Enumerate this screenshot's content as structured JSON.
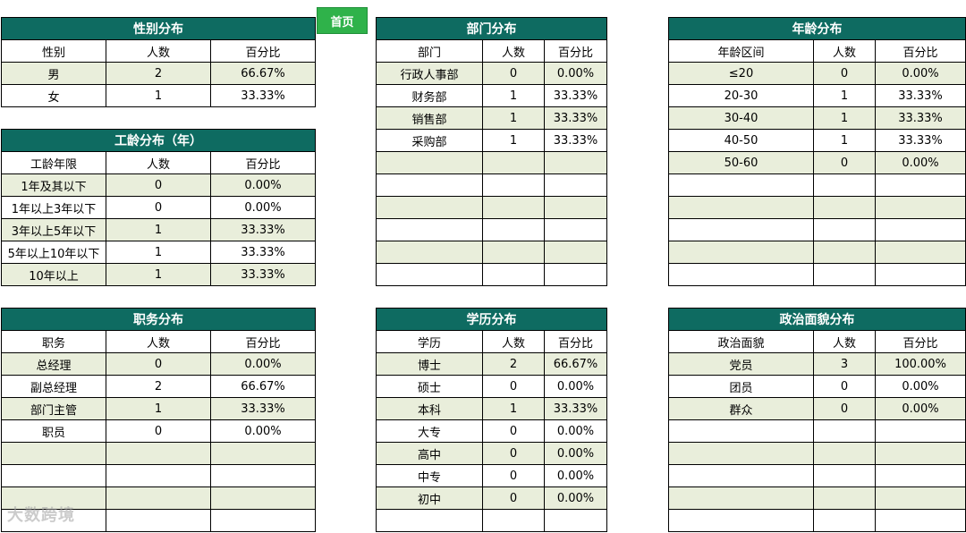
{
  "home_button": "首页",
  "watermark": "大数跨境",
  "tables": {
    "gender": {
      "title": "性别分布",
      "headers": [
        "性别",
        "人数",
        "百分比"
      ],
      "rows": [
        [
          "男",
          "2",
          "66.67%"
        ],
        [
          "女",
          "1",
          "33.33%"
        ]
      ]
    },
    "tenure": {
      "title": "工龄分布（年）",
      "headers": [
        "工龄年限",
        "人数",
        "百分比"
      ],
      "rows": [
        [
          "1年及其以下",
          "0",
          "0.00%"
        ],
        [
          "1年以上3年以下",
          "0",
          "0.00%"
        ],
        [
          "3年以上5年以下",
          "1",
          "33.33%"
        ],
        [
          "5年以上10年以下",
          "1",
          "33.33%"
        ],
        [
          "10年以上",
          "1",
          "33.33%"
        ]
      ]
    },
    "position": {
      "title": "职务分布",
      "headers": [
        "职务",
        "人数",
        "百分比"
      ],
      "rows": [
        [
          "总经理",
          "0",
          "0.00%"
        ],
        [
          "副总经理",
          "2",
          "66.67%"
        ],
        [
          "部门主管",
          "1",
          "33.33%"
        ],
        [
          "职员",
          "0",
          "0.00%"
        ],
        [
          "",
          "",
          ""
        ],
        [
          "",
          "",
          ""
        ],
        [
          "",
          "",
          ""
        ],
        [
          "",
          "",
          ""
        ]
      ]
    },
    "department": {
      "title": "部门分布",
      "headers": [
        "部门",
        "人数",
        "百分比"
      ],
      "rows": [
        [
          "行政人事部",
          "0",
          "0.00%"
        ],
        [
          "财务部",
          "1",
          "33.33%"
        ],
        [
          "销售部",
          "1",
          "33.33%"
        ],
        [
          "采购部",
          "1",
          "33.33%"
        ],
        [
          "",
          "",
          ""
        ],
        [
          "",
          "",
          ""
        ],
        [
          "",
          "",
          ""
        ],
        [
          "",
          "",
          ""
        ],
        [
          "",
          "",
          ""
        ],
        [
          "",
          "",
          ""
        ]
      ]
    },
    "education": {
      "title": "学历分布",
      "headers": [
        "学历",
        "人数",
        "百分比"
      ],
      "rows": [
        [
          "博士",
          "2",
          "66.67%"
        ],
        [
          "硕士",
          "0",
          "0.00%"
        ],
        [
          "本科",
          "1",
          "33.33%"
        ],
        [
          "大专",
          "0",
          "0.00%"
        ],
        [
          "高中",
          "0",
          "0.00%"
        ],
        [
          "中专",
          "0",
          "0.00%"
        ],
        [
          "初中",
          "0",
          "0.00%"
        ],
        [
          "",
          "",
          ""
        ]
      ]
    },
    "age": {
      "title": "年龄分布",
      "headers": [
        "年龄区间",
        "人数",
        "百分比"
      ],
      "rows": [
        [
          "≤20",
          "0",
          "0.00%"
        ],
        [
          "20-30",
          "1",
          "33.33%"
        ],
        [
          "30-40",
          "1",
          "33.33%"
        ],
        [
          "40-50",
          "1",
          "33.33%"
        ],
        [
          "50-60",
          "0",
          "0.00%"
        ],
        [
          "",
          "",
          ""
        ],
        [
          "",
          "",
          ""
        ],
        [
          "",
          "",
          ""
        ],
        [
          "",
          "",
          ""
        ],
        [
          "",
          "",
          ""
        ]
      ]
    },
    "political": {
      "title": "政治面貌分布",
      "headers": [
        "政治面貌",
        "人数",
        "百分比"
      ],
      "rows": [
        [
          "党员",
          "3",
          "100.00%"
        ],
        [
          "团员",
          "0",
          "0.00%"
        ],
        [
          "群众",
          "0",
          "0.00%"
        ],
        [
          "",
          "",
          ""
        ],
        [
          "",
          "",
          ""
        ],
        [
          "",
          "",
          ""
        ],
        [
          "",
          "",
          ""
        ],
        [
          "",
          "",
          ""
        ]
      ]
    }
  }
}
